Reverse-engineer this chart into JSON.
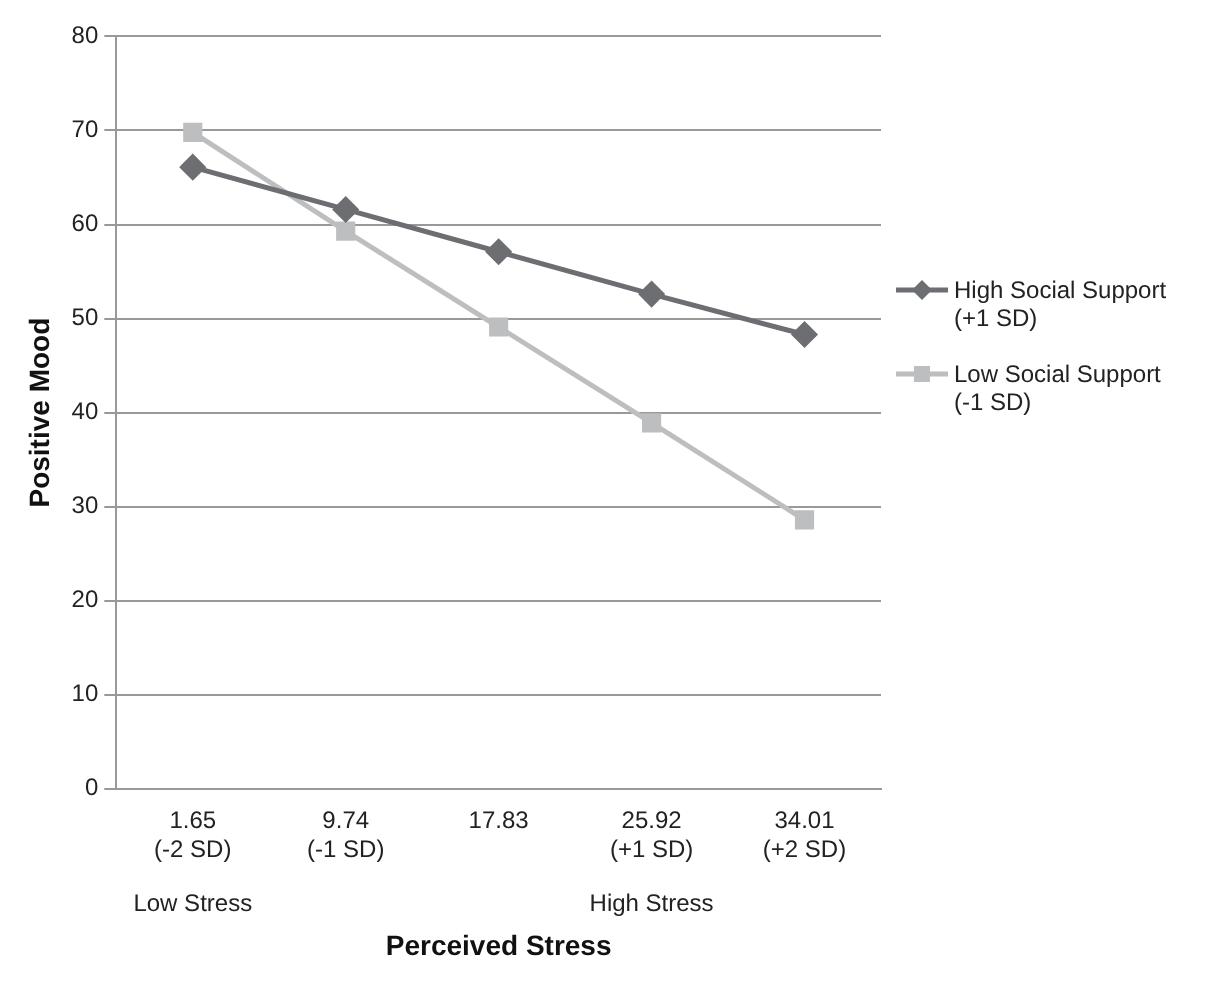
{
  "chart_data": {
    "type": "line",
    "xlabel": "Perceived Stress",
    "ylabel": "Positive Mood",
    "categories": [
      "1.65 (-2 SD)",
      "9.74 (-1 SD)",
      "17.83",
      "25.92 (+1 SD)",
      "34.01 (+2 SD)"
    ],
    "series": [
      {
        "name": "High Social Support (+1 SD)",
        "color": "#6d6e71",
        "values": [
          66.1,
          61.6,
          57.1,
          52.6,
          48.3
        ],
        "marker": "diamond"
      },
      {
        "name": "Low Social Support (-1 SD)",
        "color": "#bcbec0",
        "values": [
          69.8,
          59.3,
          49.1,
          38.9,
          28.6
        ],
        "marker": "square"
      }
    ],
    "ylim": [
      0,
      80
    ],
    "yticks": [
      0,
      10,
      20,
      30,
      40,
      50,
      60,
      70,
      80
    ],
    "grid": "y",
    "legend": "right",
    "annotations": [
      "Low Stress",
      "High Stress"
    ]
  }
}
